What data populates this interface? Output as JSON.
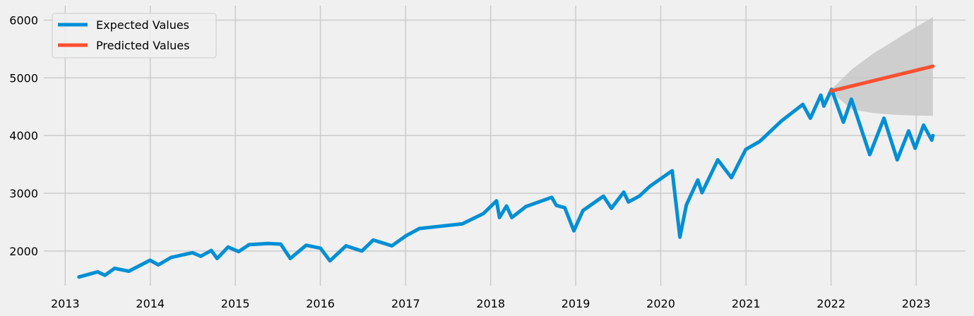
{
  "chart_data": {
    "type": "line",
    "title": "",
    "xlabel": "",
    "ylabel": "",
    "xlim": [
      "2012-10-01",
      "2023-08-01"
    ],
    "ylim": [
      1400,
      6250
    ],
    "x_ticks": [
      "2013",
      "2014",
      "2015",
      "2016",
      "2017",
      "2018",
      "2019",
      "2020",
      "2021",
      "2022",
      "2023"
    ],
    "y_ticks": [
      2000,
      3000,
      4000,
      5000,
      6000
    ],
    "grid": true,
    "legend_position": "upper-left",
    "series": [
      {
        "name": "Expected Values",
        "color": "#008fd5",
        "points": [
          [
            "2013-03-01",
            1550
          ],
          [
            "2013-05-20",
            1640
          ],
          [
            "2013-06-20",
            1580
          ],
          [
            "2013-08-01",
            1700
          ],
          [
            "2013-10-01",
            1650
          ],
          [
            "2013-12-31",
            1840
          ],
          [
            "2014-02-05",
            1760
          ],
          [
            "2014-04-01",
            1890
          ],
          [
            "2014-07-01",
            1970
          ],
          [
            "2014-08-06",
            1910
          ],
          [
            "2014-09-20",
            2010
          ],
          [
            "2014-10-15",
            1870
          ],
          [
            "2014-12-01",
            2070
          ],
          [
            "2015-01-15",
            1990
          ],
          [
            "2015-03-01",
            2110
          ],
          [
            "2015-05-20",
            2130
          ],
          [
            "2015-07-15",
            2120
          ],
          [
            "2015-08-25",
            1870
          ],
          [
            "2015-11-01",
            2100
          ],
          [
            "2016-01-01",
            2050
          ],
          [
            "2016-02-11",
            1830
          ],
          [
            "2016-04-20",
            2090
          ],
          [
            "2016-06-27",
            2000
          ],
          [
            "2016-08-15",
            2190
          ],
          [
            "2016-11-03",
            2090
          ],
          [
            "2017-01-01",
            2260
          ],
          [
            "2017-03-01",
            2390
          ],
          [
            "2017-06-01",
            2430
          ],
          [
            "2017-09-01",
            2470
          ],
          [
            "2017-12-01",
            2650
          ],
          [
            "2018-01-26",
            2870
          ],
          [
            "2018-02-08",
            2580
          ],
          [
            "2018-03-10",
            2780
          ],
          [
            "2018-04-02",
            2580
          ],
          [
            "2018-06-01",
            2770
          ],
          [
            "2018-09-20",
            2930
          ],
          [
            "2018-10-10",
            2790
          ],
          [
            "2018-11-15",
            2750
          ],
          [
            "2018-12-24",
            2350
          ],
          [
            "2019-02-01",
            2700
          ],
          [
            "2019-04-30",
            2950
          ],
          [
            "2019-06-03",
            2740
          ],
          [
            "2019-07-26",
            3020
          ],
          [
            "2019-08-15",
            2850
          ],
          [
            "2019-10-01",
            2950
          ],
          [
            "2019-11-15",
            3120
          ],
          [
            "2020-02-19",
            3390
          ],
          [
            "2020-03-23",
            2240
          ],
          [
            "2020-04-20",
            2800
          ],
          [
            "2020-06-08",
            3230
          ],
          [
            "2020-06-26",
            3010
          ],
          [
            "2020-09-02",
            3580
          ],
          [
            "2020-10-30",
            3270
          ],
          [
            "2020-12-31",
            3760
          ],
          [
            "2021-03-01",
            3900
          ],
          [
            "2021-06-01",
            4250
          ],
          [
            "2021-09-02",
            4540
          ],
          [
            "2021-10-04",
            4300
          ],
          [
            "2021-11-18",
            4700
          ],
          [
            "2021-12-01",
            4510
          ],
          [
            "2022-01-03",
            4800
          ],
          [
            "2022-02-23",
            4230
          ],
          [
            "2022-03-29",
            4630
          ],
          [
            "2022-06-16",
            3670
          ],
          [
            "2022-08-16",
            4300
          ],
          [
            "2022-10-12",
            3580
          ],
          [
            "2022-11-30",
            4080
          ],
          [
            "2022-12-28",
            3780
          ],
          [
            "2023-02-02",
            4180
          ],
          [
            "2023-03-09",
            3920
          ],
          [
            "2023-03-14",
            4000
          ]
        ]
      },
      {
        "name": "Predicted Values",
        "color": "#fc4f30",
        "points": [
          [
            "2022-01-01",
            4770
          ],
          [
            "2023-03-14",
            5200
          ]
        ]
      }
    ],
    "confidence_interval": {
      "color": "#c8c8c8",
      "upper": [
        [
          "2022-01-01",
          4800
        ],
        [
          "2022-04-01",
          5150
        ],
        [
          "2022-07-01",
          5420
        ],
        [
          "2022-10-01",
          5650
        ],
        [
          "2023-01-01",
          5880
        ],
        [
          "2023-03-14",
          6050
        ]
      ],
      "lower": [
        [
          "2022-01-01",
          4750
        ],
        [
          "2022-04-01",
          4450
        ],
        [
          "2022-07-01",
          4390
        ],
        [
          "2022-10-01",
          4360
        ],
        [
          "2023-01-01",
          4345
        ],
        [
          "2023-03-14",
          4340
        ]
      ]
    }
  }
}
